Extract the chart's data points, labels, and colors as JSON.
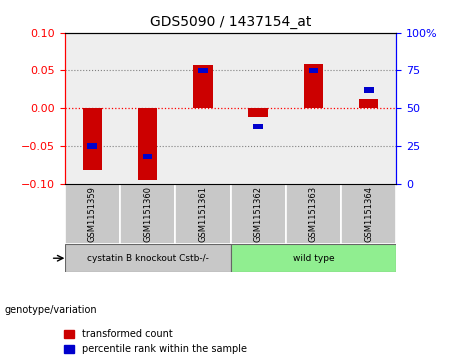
{
  "title": "GDS5090 / 1437154_at",
  "samples": [
    "GSM1151359",
    "GSM1151360",
    "GSM1151361",
    "GSM1151362",
    "GSM1151363",
    "GSM1151364"
  ],
  "red_values": [
    -0.082,
    -0.095,
    0.057,
    -0.012,
    0.059,
    0.012
  ],
  "blue_values_pct": [
    25,
    18,
    75,
    38,
    75,
    62
  ],
  "group1_color": "#c8c8c8",
  "group2_color": "#90ee90",
  "ylim_left": [
    -0.1,
    0.1
  ],
  "ylim_right": [
    0,
    100
  ],
  "yticks_left": [
    -0.1,
    -0.05,
    0,
    0.05,
    0.1
  ],
  "yticks_right": [
    0,
    25,
    50,
    75,
    100
  ],
  "red_color": "#cc0000",
  "blue_color": "#0000cc",
  "background_color": "#ffffff",
  "plot_bg_color": "#eeeeee",
  "legend_red": "transformed count",
  "legend_blue": "percentile rank within the sample",
  "genotype_label": "genotype/variation",
  "group1_label": "cystatin B knockout Cstb-/-",
  "group2_label": "wild type",
  "bar_width": 0.35
}
